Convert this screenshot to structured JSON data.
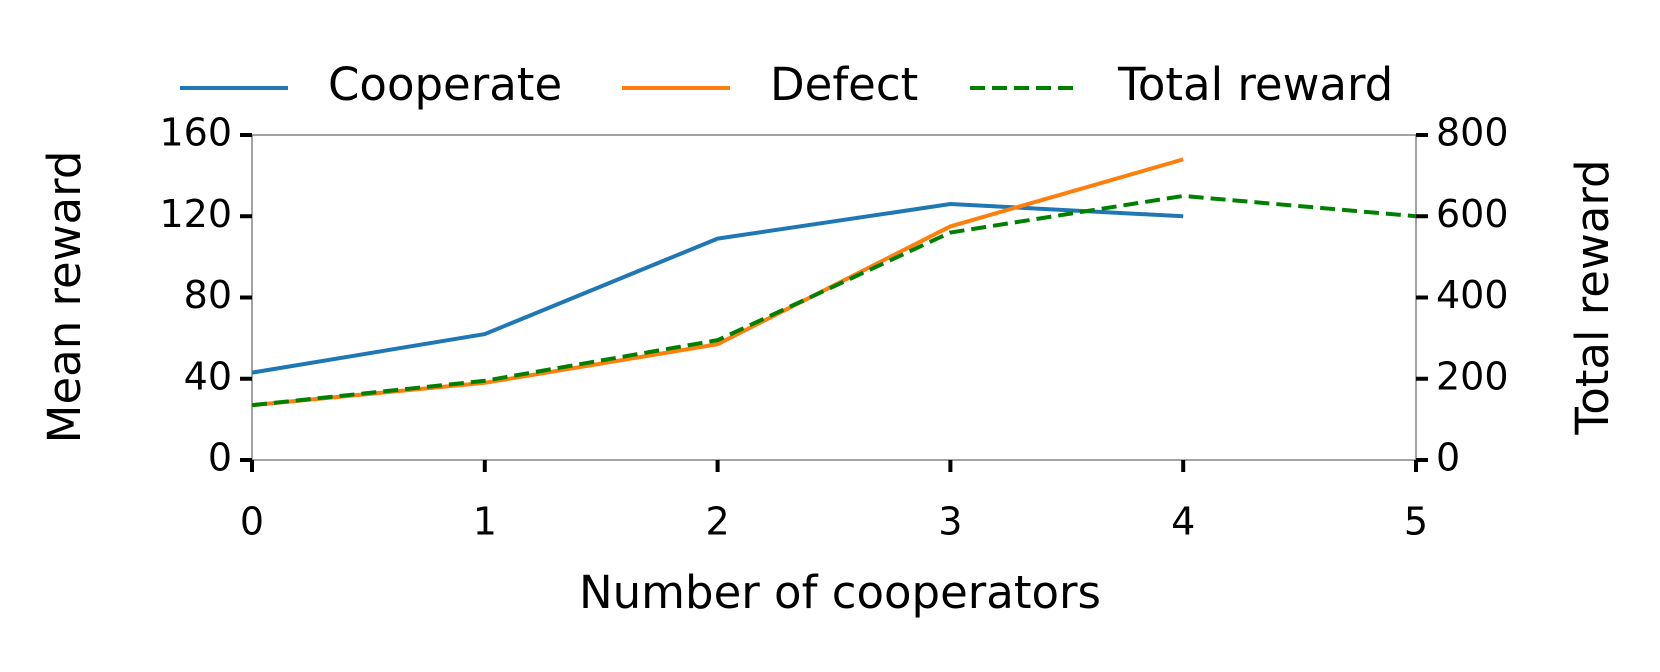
{
  "chart_data": {
    "type": "line",
    "x_label": "Number of cooperators",
    "y_label": "Mean reward",
    "y2_label": "Total reward",
    "x": [
      0,
      1,
      2,
      3,
      4,
      5
    ],
    "series": [
      {
        "name": "Cooperate",
        "color": "#1f77b4",
        "dash": "solid",
        "values": [
          43,
          62,
          109,
          126,
          120,
          null
        ]
      },
      {
        "name": "Defect",
        "color": "#ff7f0e",
        "dash": "solid",
        "values": [
          27,
          38,
          57,
          115,
          148,
          null
        ]
      },
      {
        "name": "Total reward",
        "color": "#008000",
        "dash": "dashed",
        "axis": "y2",
        "values": [
          135,
          195,
          295,
          560,
          650,
          600
        ]
      }
    ],
    "xlim": [
      0,
      5
    ],
    "xticks": [
      0,
      1,
      2,
      3,
      4,
      5
    ],
    "ylim": [
      0,
      160
    ],
    "yticks": [
      0,
      40,
      80,
      120,
      160
    ],
    "y2lim": [
      0,
      800
    ],
    "y2ticks": [
      0,
      200,
      400,
      600,
      800
    ],
    "legend": "top"
  }
}
